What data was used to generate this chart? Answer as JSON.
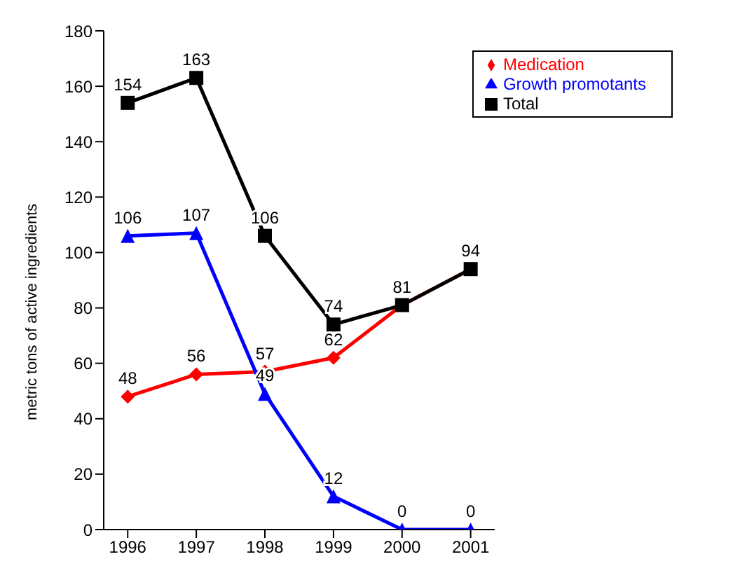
{
  "chart_data": {
    "type": "line",
    "ylabel": "metric tons of active ingredients",
    "categories": [
      "1996",
      "1997",
      "1998",
      "1999",
      "2000",
      "2001"
    ],
    "ylim": [
      0,
      180
    ],
    "yticks": [
      0,
      20,
      40,
      60,
      80,
      100,
      120,
      140,
      160,
      180
    ],
    "grid": false,
    "legend": "top right",
    "series": [
      {
        "name": "Medication",
        "color": "#ff0000",
        "marker": "diamond",
        "values": [
          48,
          56,
          57,
          62,
          81,
          94
        ],
        "value_labels": [
          "48",
          "56",
          "57",
          "62",
          null,
          null
        ]
      },
      {
        "name": "Growth promotants",
        "color": "#0000ff",
        "marker": "triangle",
        "values": [
          106,
          107,
          49,
          12,
          0,
          0
        ],
        "value_labels": [
          "106",
          "107",
          "49",
          "12",
          "0",
          "0"
        ]
      },
      {
        "name": "Total",
        "color": "#000000",
        "marker": "square",
        "values": [
          154,
          163,
          106,
          74,
          81,
          94
        ],
        "value_labels": [
          "154",
          "163",
          "106",
          "74",
          "81",
          "94"
        ]
      }
    ]
  }
}
